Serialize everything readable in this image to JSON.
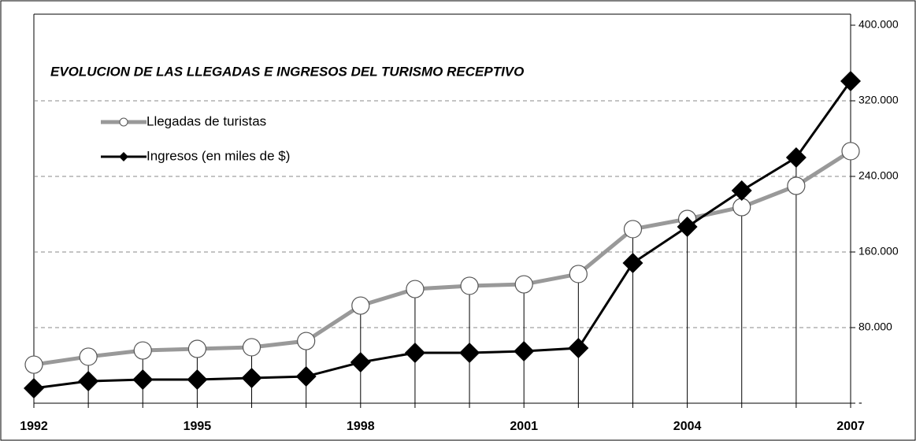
{
  "chart_data": {
    "type": "line",
    "title": "EVOLUCION DE LAS LLEGADAS E INGRESOS DEL TURISMO RECEPTIVO",
    "x": [
      1992,
      1993,
      1994,
      1995,
      1996,
      1997,
      1998,
      1999,
      2000,
      2001,
      2002,
      2003,
      2004,
      2005,
      2006,
      2007
    ],
    "xlim": [
      1992,
      2007
    ],
    "xticks": [
      1992,
      1995,
      1998,
      2001,
      2004,
      2007
    ],
    "ylim": [
      0,
      400000
    ],
    "yticks": [
      {
        "value": 0,
        "label": "-"
      },
      {
        "value": 80000,
        "label": "80.000"
      },
      {
        "value": 160000,
        "label": "160.000"
      },
      {
        "value": 240000,
        "label": "240.000"
      },
      {
        "value": 320000,
        "label": "320.000"
      },
      {
        "value": 400000,
        "label": "400.000"
      }
    ],
    "grid": true,
    "series": [
      {
        "name": "Llegadas de turistas",
        "color": "#999999",
        "marker": "circle",
        "values": [
          40800,
          49200,
          55800,
          57500,
          59200,
          65800,
          103300,
          120800,
          124200,
          125800,
          136700,
          184200,
          195000,
          207500,
          230000,
          266700
        ]
      },
      {
        "name": "Ingresos (en miles de $)",
        "color": "#000000",
        "marker": "diamond",
        "values": [
          15800,
          23300,
          25000,
          25000,
          26700,
          28300,
          43300,
          53300,
          53300,
          55000,
          58300,
          148300,
          186700,
          225000,
          260000,
          340800
        ]
      }
    ]
  }
}
